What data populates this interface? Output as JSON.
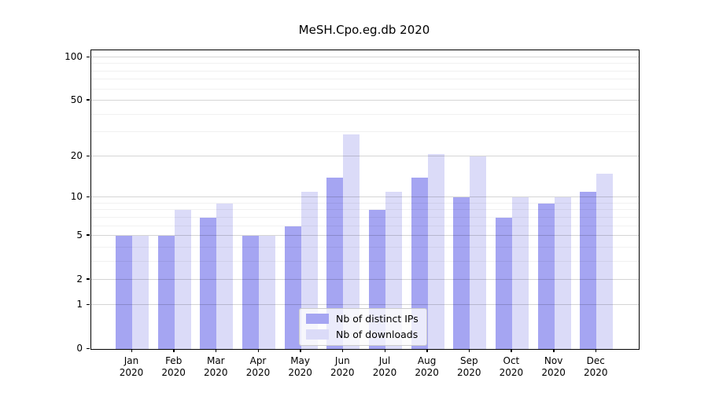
{
  "title": "MeSH.Cpo.eg.db 2020",
  "colors": {
    "ips_bar": "#a5a5f2",
    "downloads_bar": "#dbdbf8",
    "axis": "#000000",
    "legend_border": "#cccccc"
  },
  "legend": {
    "items": [
      {
        "label": "Nb of distinct IPs",
        "series": "ips"
      },
      {
        "label": "Nb of downloads",
        "series": "downloads"
      }
    ]
  },
  "y_axis": {
    "major_ticks": [
      0,
      1,
      2,
      5,
      10,
      20,
      50,
      100
    ],
    "minor_ticks": [
      3,
      4,
      6,
      7,
      8,
      9,
      30,
      40,
      60,
      70,
      80,
      90
    ],
    "max_value": 112,
    "scale": "log1p"
  },
  "x_axis": {
    "year": "2020",
    "months": [
      "Jan",
      "Feb",
      "Mar",
      "Apr",
      "May",
      "Jun",
      "Jul",
      "Aug",
      "Sep",
      "Oct",
      "Nov",
      "Dec"
    ]
  },
  "chart_data": {
    "type": "bar",
    "title": "MeSH.Cpo.eg.db 2020",
    "categories": [
      "Jan 2020",
      "Feb 2020",
      "Mar 2020",
      "Apr 2020",
      "May 2020",
      "Jun 2020",
      "Jul 2020",
      "Aug 2020",
      "Sep 2020",
      "Oct 2020",
      "Nov 2020",
      "Dec 2020"
    ],
    "series": [
      {
        "name": "Nb of distinct IPs",
        "values": [
          5,
          5,
          7,
          5,
          6,
          14,
          8,
          14,
          10,
          7,
          9,
          11
        ]
      },
      {
        "name": "Nb of downloads",
        "values": [
          5,
          8,
          9,
          5,
          11,
          29,
          11,
          21,
          20,
          10,
          10,
          15
        ]
      }
    ],
    "xlabel": "",
    "ylabel": "",
    "yscale": "log1p",
    "y_ticks": [
      0,
      1,
      2,
      5,
      10,
      20,
      50,
      100
    ],
    "ylim": [
      0,
      112
    ],
    "grid": "horizontal, drawn above bars",
    "legend_position": "lower center"
  }
}
